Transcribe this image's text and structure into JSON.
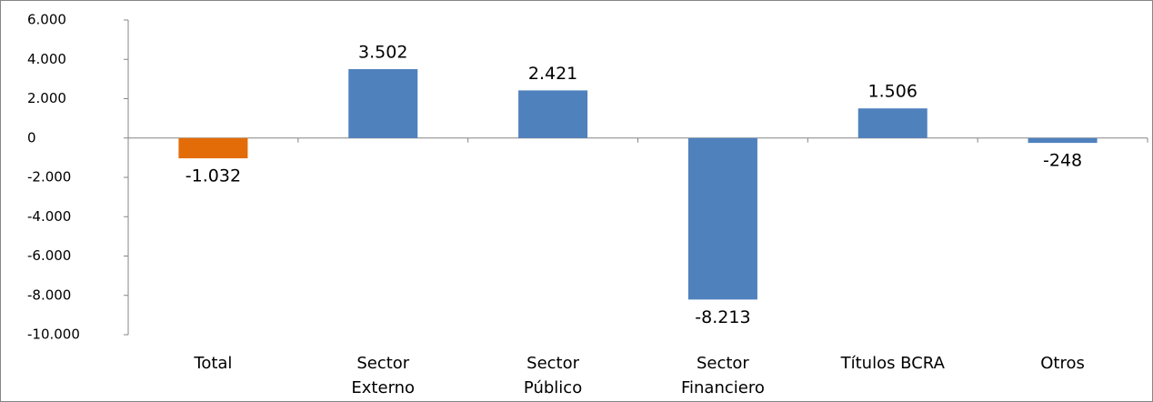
{
  "chart_data": {
    "type": "bar",
    "categories": [
      "Total",
      "Sector\nExterno",
      "Sector\nPúblico",
      "Sector\nFinanciero",
      "Títulos BCRA",
      "Otros"
    ],
    "values": [
      -1032,
      3502,
      2421,
      -8213,
      1506,
      -248
    ],
    "value_labels": [
      "-1.032",
      "3.502",
      "2.421",
      "-8.213",
      "1.506",
      "-248"
    ],
    "colors": [
      "#e36c09",
      "#4f81bd",
      "#4f81bd",
      "#4f81bd",
      "#4f81bd",
      "#4f81bd"
    ],
    "ylim": [
      -10000,
      6000
    ],
    "yticks": [
      {
        "value": -10000,
        "label": "-10.000"
      },
      {
        "value": -8000,
        "label": "-8.000"
      },
      {
        "value": -6000,
        "label": "-6.000"
      },
      {
        "value": -4000,
        "label": "-4.000"
      },
      {
        "value": -2000,
        "label": "-2.000"
      },
      0,
      {
        "value": 2000,
        "label": "2.000"
      },
      {
        "value": 4000,
        "label": "4.000"
      },
      {
        "value": 6000,
        "label": "6.000"
      }
    ],
    "grid": false
  }
}
